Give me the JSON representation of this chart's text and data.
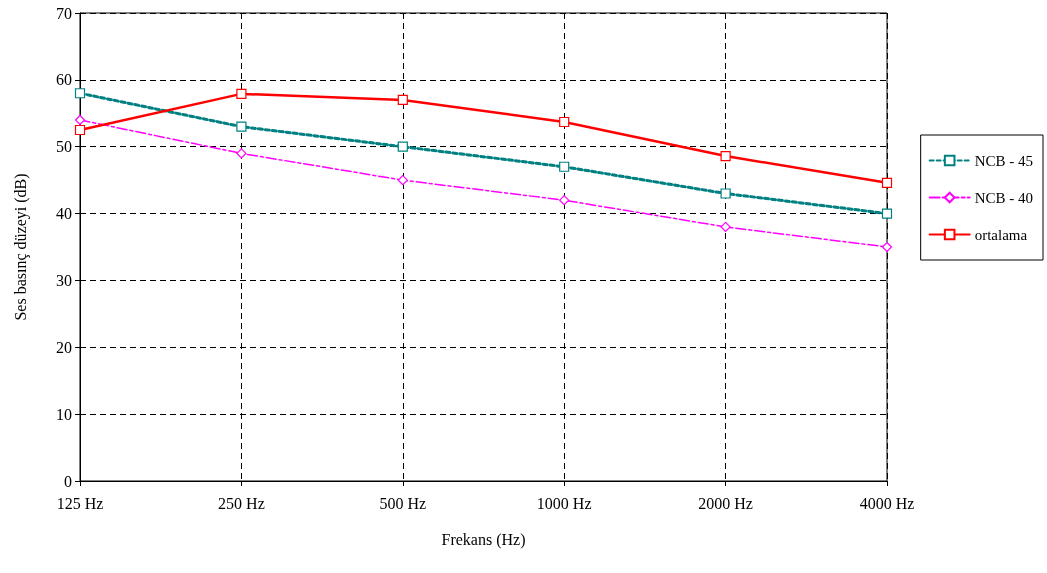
{
  "chart_data": {
    "type": "line",
    "xlabel": "Frekans (Hz)",
    "ylabel": "Ses basınç düzeyi (dB)",
    "categories": [
      "125 Hz",
      "250 Hz",
      "500 Hz",
      "1000 Hz",
      "2000 Hz",
      "4000 Hz"
    ],
    "series": [
      {
        "name": "NCB - 45",
        "color": "#008080",
        "marker": "square",
        "line_style": "dotted",
        "values": [
          58,
          53,
          50,
          47,
          43,
          40
        ]
      },
      {
        "name": "NCB - 40",
        "color": "#ff00ff",
        "marker": "diamond",
        "line_style": "dashed",
        "values": [
          54,
          49,
          45,
          42,
          38,
          35
        ]
      },
      {
        "name": "ortalama",
        "color": "#ff0000",
        "marker": "square",
        "line_style": "solid",
        "values": [
          52.5,
          57.9,
          57,
          53.7,
          48.6,
          44.6
        ]
      }
    ],
    "ylim": [
      0,
      70
    ],
    "yticks": [
      0,
      10,
      20,
      30,
      40,
      50,
      60,
      70
    ],
    "grid": true,
    "legend": "right"
  }
}
